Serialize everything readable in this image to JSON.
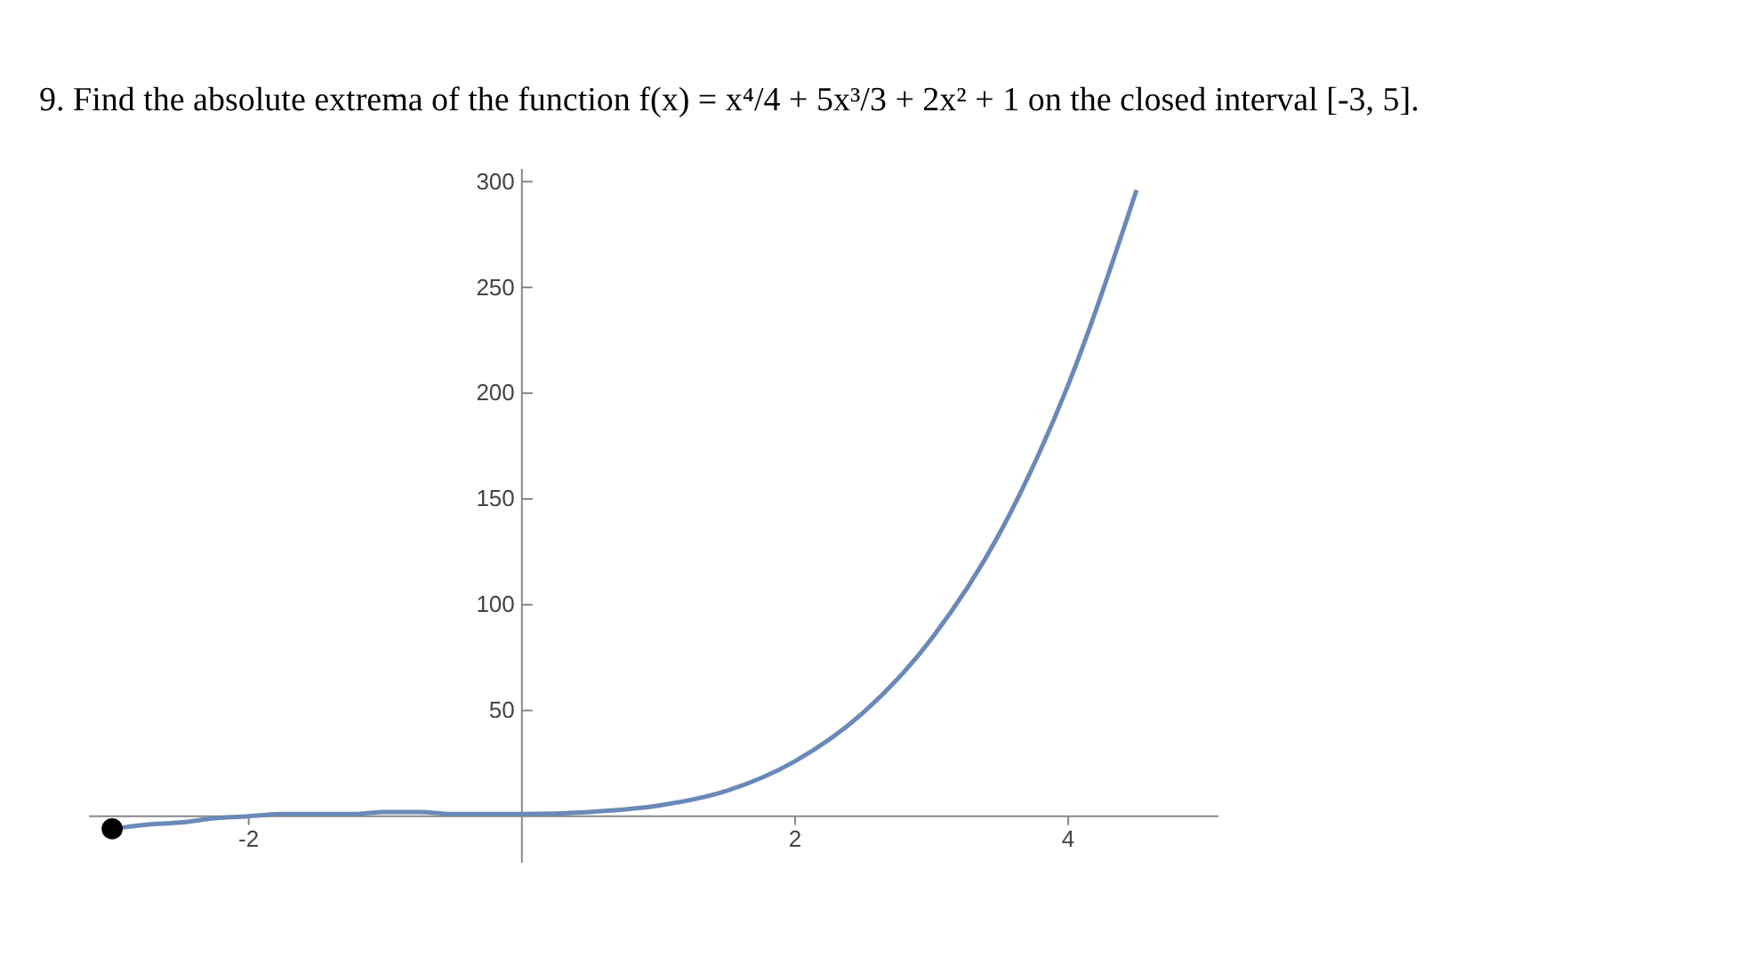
{
  "chart_data": {
    "type": "line",
    "title": "9. Find the absolute extrema of the function f(x) = x⁴/4 + 5x³/3 + 2x² + 1 on the closed interval [-3, 5].",
    "xlim": [
      -3.17,
      5.1
    ],
    "ylim": [
      -22,
      306
    ],
    "xticks": [
      -2,
      2,
      4
    ],
    "yticks": [
      50,
      100,
      150,
      200,
      250,
      300
    ],
    "grid": false,
    "series": [
      {
        "color": "#6a89b8",
        "marker": "none",
        "x": [
          -3,
          -2.75,
          -2.5,
          -2.25,
          -2,
          -1.75,
          -1.5,
          -1.25,
          -1,
          -0.75,
          -0.5,
          -0.25,
          0,
          0.5,
          1,
          1.5,
          2,
          2.5,
          3,
          3.5,
          4,
          4.5
        ],
        "values": [
          -6,
          -4,
          -3,
          -1,
          0,
          1,
          1,
          1,
          2,
          2,
          1,
          1,
          1,
          2,
          5,
          12,
          26,
          49,
          84,
          134,
          204,
          296
        ]
      },
      {
        "type": "scatter",
        "color": "#000000",
        "marker": "circle",
        "x": [
          -3
        ],
        "values": [
          -6
        ]
      }
    ]
  }
}
